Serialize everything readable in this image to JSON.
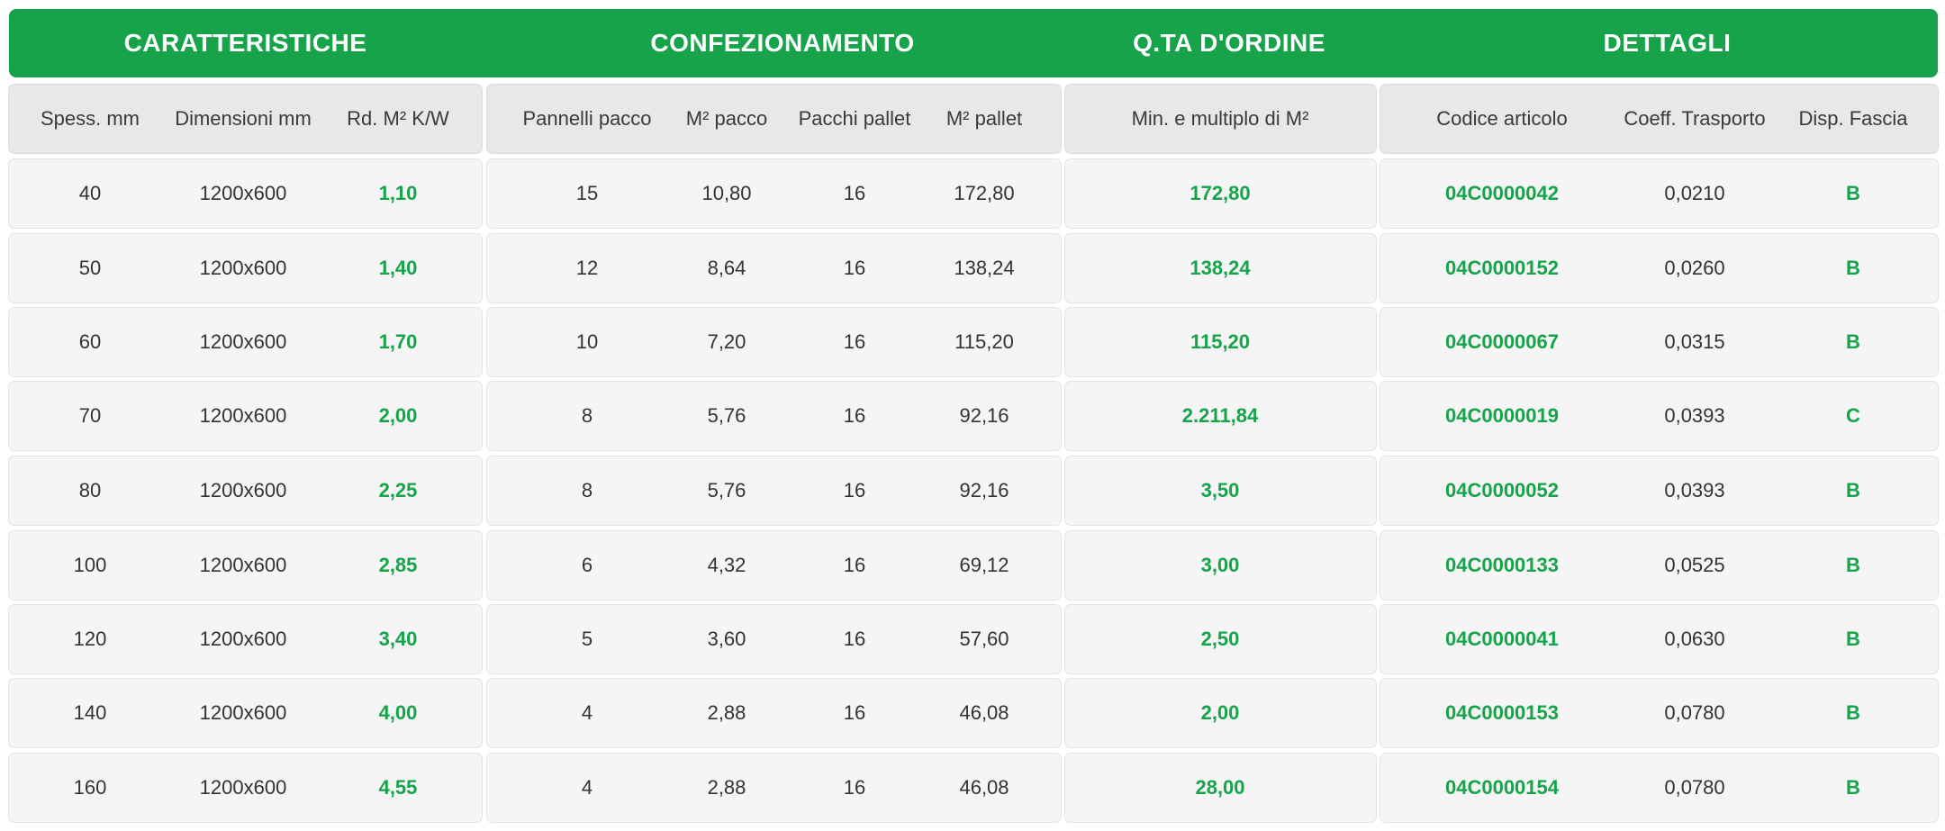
{
  "colors": {
    "accent": "#16a34a",
    "header_text": "#ffffff",
    "row_bg": "#f5f5f5",
    "subheader_bg": "#e7e8ea",
    "text": "#333333"
  },
  "groups": [
    "CARATTERISTICHE",
    "CONFEZIONAMENTO",
    "Q.TA D'ORDINE",
    "DETTAGLI"
  ],
  "columns": [
    "Spess. mm",
    "Dimensioni mm",
    "Rd. M² K/W",
    "Pannelli pacco",
    "M² pacco",
    "Pacchi pallet",
    "M² pallet",
    "Min. e multiplo di M²",
    "Codice articolo",
    "Coeff. Trasporto",
    "Disp. Fascia"
  ],
  "rows": [
    [
      "40",
      "1200x600",
      "1,10",
      "15",
      "10,80",
      "16",
      "172,80",
      "172,80",
      "04C0000042",
      "0,0210",
      "B"
    ],
    [
      "50",
      "1200x600",
      "1,40",
      "12",
      "8,64",
      "16",
      "138,24",
      "138,24",
      "04C0000152",
      "0,0260",
      "B"
    ],
    [
      "60",
      "1200x600",
      "1,70",
      "10",
      "7,20",
      "16",
      "115,20",
      "115,20",
      "04C0000067",
      "0,0315",
      "B"
    ],
    [
      "70",
      "1200x600",
      "2,00",
      "8",
      "5,76",
      "16",
      "92,16",
      "2.211,84",
      "04C0000019",
      "0,0393",
      "C"
    ],
    [
      "80",
      "1200x600",
      "2,25",
      "8",
      "5,76",
      "16",
      "92,16",
      "3,50",
      "04C0000052",
      "0,0393",
      "B"
    ],
    [
      "100",
      "1200x600",
      "2,85",
      "6",
      "4,32",
      "16",
      "69,12",
      "3,00",
      "04C0000133",
      "0,0525",
      "B"
    ],
    [
      "120",
      "1200x600",
      "3,40",
      "5",
      "3,60",
      "16",
      "57,60",
      "2,50",
      "04C0000041",
      "0,0630",
      "B"
    ],
    [
      "140",
      "1200x600",
      "4,00",
      "4",
      "2,88",
      "16",
      "46,08",
      "2,00",
      "04C0000153",
      "0,0780",
      "B"
    ],
    [
      "160",
      "1200x600",
      "4,55",
      "4",
      "2,88",
      "16",
      "46,08",
      "28,00",
      "04C0000154",
      "0,0780",
      "B"
    ]
  ]
}
